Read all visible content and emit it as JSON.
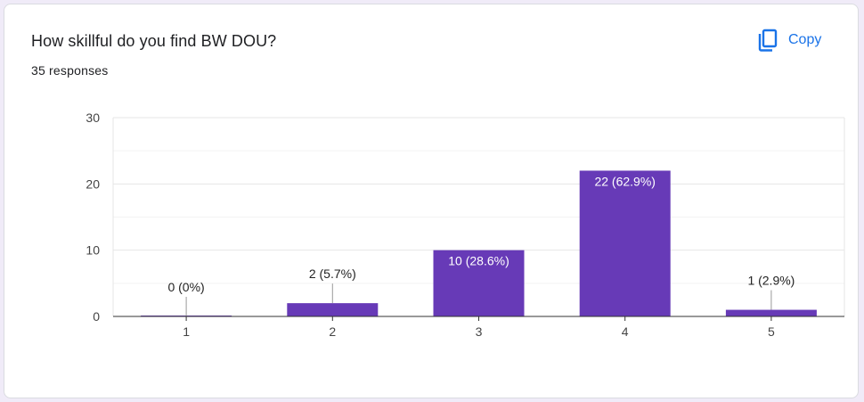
{
  "question": {
    "title": "How skillful do you find BW DOU?",
    "responses": "35 responses"
  },
  "toolbar": {
    "copy_label": "Copy",
    "copy_icon": "copy-icon"
  },
  "colors": {
    "bar": "#673ab7",
    "accent": "#1a73e8",
    "grid": "#e6e6e6",
    "axis": "#333333"
  },
  "chart_data": {
    "type": "bar",
    "title": "",
    "xlabel": "",
    "ylabel": "",
    "categories": [
      "1",
      "2",
      "3",
      "4",
      "5"
    ],
    "values": [
      0,
      2,
      10,
      22,
      1
    ],
    "data_labels": [
      "0 (0%)",
      "2 (5.7%)",
      "10 (28.6%)",
      "22 (62.9%)",
      "1 (2.9%)"
    ],
    "ylim": [
      0,
      30
    ],
    "yticks": [
      0,
      10,
      20,
      30
    ],
    "minor_gridlines": [
      5,
      15,
      25
    ],
    "grid": true,
    "legend": "none"
  }
}
